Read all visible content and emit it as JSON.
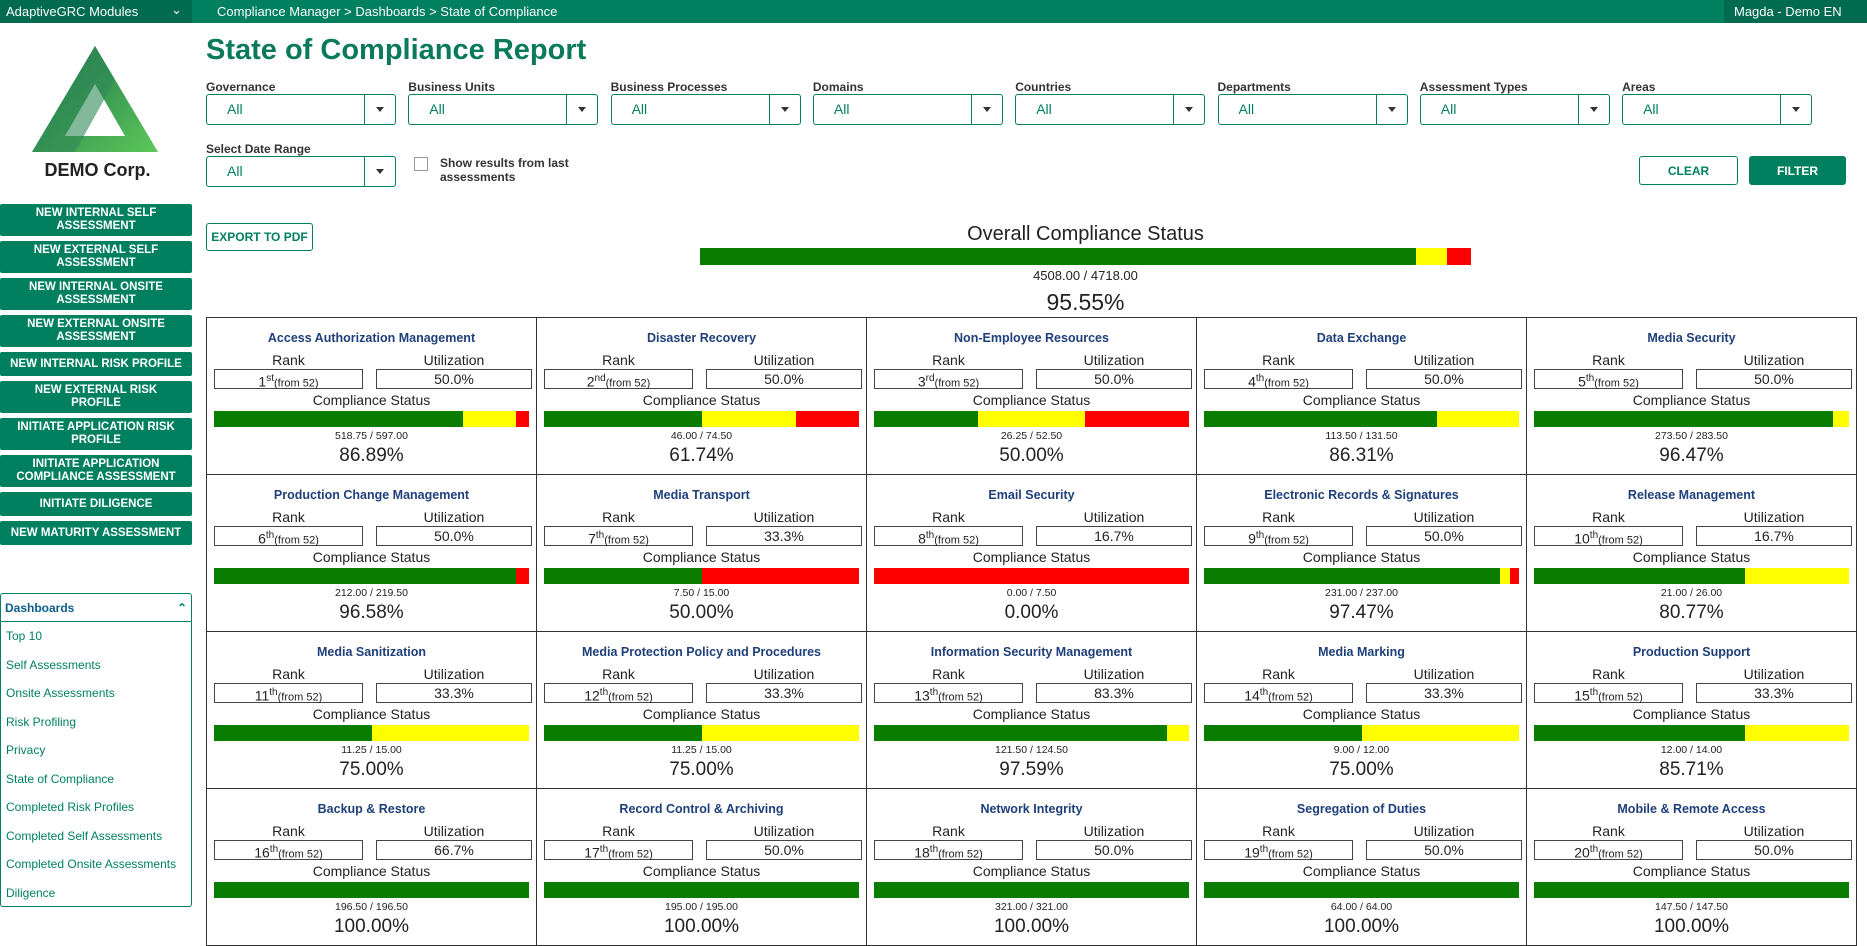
{
  "topbar": {
    "modules": "AdaptiveGRC Modules",
    "breadcrumb": "Compliance Manager > Dashboards > State of Compliance",
    "user": "Magda - Demo EN"
  },
  "logo": {
    "company": "DEMO Corp."
  },
  "actions": [
    "NEW INTERNAL SELF ASSESSMENT",
    "NEW EXTERNAL SELF ASSESSMENT",
    "NEW INTERNAL ONSITE ASSESSMENT",
    "NEW EXTERNAL ONSITE ASSESSMENT",
    "NEW INTERNAL RISK PROFILE",
    "NEW EXTERNAL RISK PROFILE",
    "INITIATE APPLICATION RISK PROFILE",
    "INITIATE APPLICATION COMPLIANCE ASSESSMENT",
    "INITIATE DILIGENCE",
    "NEW MATURITY ASSESSMENT"
  ],
  "dashboards": {
    "title": "Dashboards",
    "links": [
      "Top 10",
      "Self Assessments",
      "Onsite Assessments",
      "Risk Profiling",
      "Privacy",
      "State of Compliance",
      "Completed Risk Profiles",
      "Completed Self Assessments",
      "Completed Onsite Assessments",
      "Diligence"
    ]
  },
  "page": {
    "title": "State of Compliance Report"
  },
  "filters": [
    {
      "label": "Governance",
      "value": "All"
    },
    {
      "label": "Business Units",
      "value": "All"
    },
    {
      "label": "Business Processes",
      "value": "All"
    },
    {
      "label": "Domains",
      "value": "All"
    },
    {
      "label": "Countries",
      "value": "All"
    },
    {
      "label": "Departments",
      "value": "All"
    },
    {
      "label": "Assessment Types",
      "value": "All"
    },
    {
      "label": "Areas",
      "value": "All"
    }
  ],
  "date_filter": {
    "label": "Select Date Range",
    "value": "All"
  },
  "checkbox": "Show results from last assessments",
  "buttons": {
    "clear": "CLEAR",
    "filter": "FILTER",
    "export": "EXPORT TO PDF"
  },
  "overall": {
    "title": "Overall Compliance Status",
    "score": "4508.00 / 4718.00",
    "percent": "95.55%",
    "bar": [
      92.9,
      4.0,
      3.1
    ]
  },
  "labels": {
    "rank": "Rank",
    "utilization": "Utilization",
    "status": "Compliance Status"
  },
  "cards": [
    {
      "title": "Access Authorization Management",
      "rank": "1",
      "suffix": "st",
      "from": "(from 52)",
      "utilization": "50.0%",
      "score": "518.75 / 597.00",
      "percent": "86.89%",
      "bar": [
        79,
        17,
        4
      ]
    },
    {
      "title": "Disaster Recovery",
      "rank": "2",
      "suffix": "nd",
      "from": "(from 52)",
      "utilization": "50.0%",
      "score": "46.00 / 74.50",
      "percent": "61.74%",
      "bar": [
        50,
        30,
        20
      ]
    },
    {
      "title": "Non-Employee Resources",
      "rank": "3",
      "suffix": "rd",
      "from": "(from 52)",
      "utilization": "50.0%",
      "score": "26.25 / 52.50",
      "percent": "50.00%",
      "bar": [
        33,
        34,
        33
      ]
    },
    {
      "title": "Data Exchange",
      "rank": "4",
      "suffix": "th",
      "from": "(from 52)",
      "utilization": "50.0%",
      "score": "113.50 / 131.50",
      "percent": "86.31%",
      "bar": [
        74,
        26,
        0
      ]
    },
    {
      "title": "Media Security",
      "rank": "5",
      "suffix": "th",
      "from": "(from 52)",
      "utilization": "50.0%",
      "score": "273.50 / 283.50",
      "percent": "96.47%",
      "bar": [
        95,
        5,
        0
      ]
    },
    {
      "title": "Production Change Management",
      "rank": "6",
      "suffix": "th",
      "from": "(from 52)",
      "utilization": "50.0%",
      "score": "212.00 / 219.50",
      "percent": "96.58%",
      "bar": [
        96,
        0,
        4
      ]
    },
    {
      "title": "Media Transport",
      "rank": "7",
      "suffix": "th",
      "from": "(from 52)",
      "utilization": "33.3%",
      "score": "7.50 / 15.00",
      "percent": "50.00%",
      "bar": [
        50,
        0,
        50
      ]
    },
    {
      "title": "Email Security",
      "rank": "8",
      "suffix": "th",
      "from": "(from 52)",
      "utilization": "16.7%",
      "score": "0.00 / 7.50",
      "percent": "0.00%",
      "bar": [
        0,
        0,
        100
      ]
    },
    {
      "title": "Electronic Records & Signatures",
      "rank": "9",
      "suffix": "th",
      "from": "(from 52)",
      "utilization": "50.0%",
      "score": "231.00 / 237.00",
      "percent": "97.47%",
      "bar": [
        94,
        3,
        3
      ]
    },
    {
      "title": "Release Management",
      "rank": "10",
      "suffix": "th",
      "from": "(from 52)",
      "utilization": "16.7%",
      "score": "21.00 / 26.00",
      "percent": "80.77%",
      "bar": [
        67,
        33,
        0
      ]
    },
    {
      "title": "Media Sanitization",
      "rank": "11",
      "suffix": "th",
      "from": "(from 52)",
      "utilization": "33.3%",
      "score": "11.25 / 15.00",
      "percent": "75.00%",
      "bar": [
        50,
        50,
        0
      ]
    },
    {
      "title": "Media Protection Policy and Procedures",
      "rank": "12",
      "suffix": "th",
      "from": "(from 52)",
      "utilization": "33.3%",
      "score": "11.25 / 15.00",
      "percent": "75.00%",
      "bar": [
        50,
        50,
        0
      ]
    },
    {
      "title": "Information Security Management",
      "rank": "13",
      "suffix": "th",
      "from": "(from 52)",
      "utilization": "83.3%",
      "score": "121.50 / 124.50",
      "percent": "97.59%",
      "bar": [
        93,
        7,
        0
      ]
    },
    {
      "title": "Media Marking",
      "rank": "14",
      "suffix": "th",
      "from": "(from 52)",
      "utilization": "33.3%",
      "score": "9.00 / 12.00",
      "percent": "75.00%",
      "bar": [
        50,
        50,
        0
      ]
    },
    {
      "title": "Production Support",
      "rank": "15",
      "suffix": "th",
      "from": "(from 52)",
      "utilization": "33.3%",
      "score": "12.00 / 14.00",
      "percent": "85.71%",
      "bar": [
        67,
        33,
        0
      ]
    },
    {
      "title": "Backup & Restore",
      "rank": "16",
      "suffix": "th",
      "from": "(from 52)",
      "utilization": "66.7%",
      "score": "196.50 / 196.50",
      "percent": "100.00%",
      "bar": [
        100,
        0,
        0
      ]
    },
    {
      "title": "Record Control & Archiving",
      "rank": "17",
      "suffix": "th",
      "from": "(from 52)",
      "utilization": "50.0%",
      "score": "195.00 / 195.00",
      "percent": "100.00%",
      "bar": [
        100,
        0,
        0
      ]
    },
    {
      "title": "Network Integrity",
      "rank": "18",
      "suffix": "th",
      "from": "(from 52)",
      "utilization": "50.0%",
      "score": "321.00 / 321.00",
      "percent": "100.00%",
      "bar": [
        100,
        0,
        0
      ]
    },
    {
      "title": "Segregation of Duties",
      "rank": "19",
      "suffix": "th",
      "from": "(from 52)",
      "utilization": "50.0%",
      "score": "64.00 / 64.00",
      "percent": "100.00%",
      "bar": [
        100,
        0,
        0
      ]
    },
    {
      "title": "Mobile & Remote Access",
      "rank": "20",
      "suffix": "th",
      "from": "(from 52)",
      "utilization": "50.0%",
      "score": "147.50 / 147.50",
      "percent": "100.00%",
      "bar": [
        100,
        0,
        0
      ]
    }
  ]
}
